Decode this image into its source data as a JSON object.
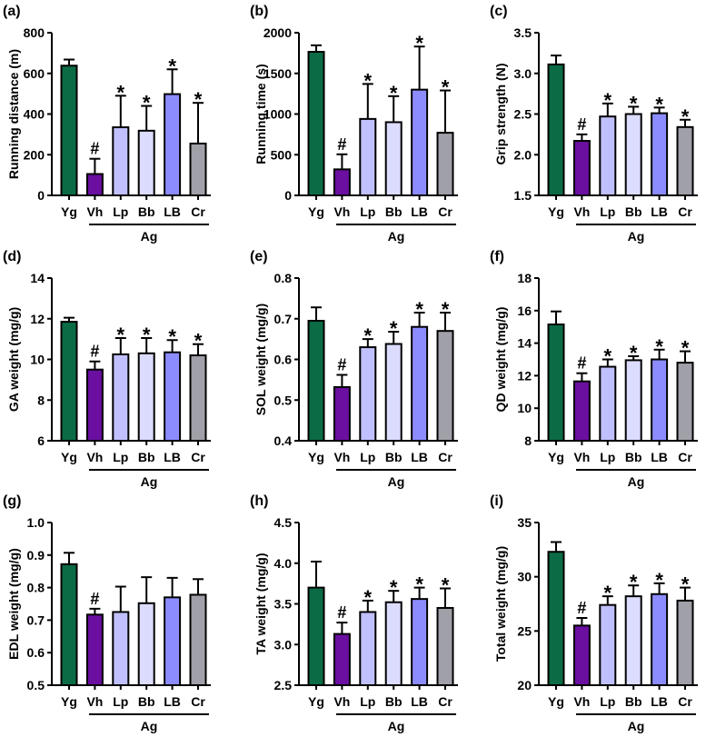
{
  "chart_data": {
    "type": "bar",
    "categories": [
      "Yg",
      "Vh",
      "Lp",
      "Bb",
      "LB",
      "Cr"
    ],
    "group_label": "Ag",
    "colors": [
      "#0b6b45",
      "#6a0fa0",
      "#c0c0ff",
      "#dcdcff",
      "#8c8cff",
      "#a0a0a8"
    ],
    "panels": [
      {
        "label": "(a)",
        "ylabel": "Running distance (m)",
        "ylim": [
          0,
          800
        ],
        "ticks": [
          "0",
          "200",
          "400",
          "600",
          "800"
        ],
        "values": [
          638,
          105,
          335,
          318,
          498,
          255
        ],
        "errors": [
          30,
          75,
          155,
          122,
          122,
          200
        ],
        "markers": [
          "",
          "#",
          "*",
          "*",
          "*",
          "*"
        ]
      },
      {
        "label": "(b)",
        "ylabel": "Running time (s)",
        "ylim": [
          0,
          2000
        ],
        "ticks": [
          "0",
          "500",
          "1000",
          "1500",
          "2000"
        ],
        "values": [
          1765,
          320,
          940,
          900,
          1300,
          770
        ],
        "errors": [
          80,
          185,
          430,
          320,
          530,
          520
        ],
        "markers": [
          "",
          "#",
          "*",
          "*",
          "*",
          "*"
        ]
      },
      {
        "label": "(c)",
        "ylabel": "Grip strength (N)",
        "ylim": [
          1.5,
          3.5
        ],
        "ticks": [
          "1.5",
          "2.0",
          "2.5",
          "3.0",
          "3.5"
        ],
        "values": [
          3.11,
          2.17,
          2.47,
          2.5,
          2.51,
          2.34
        ],
        "errors": [
          0.11,
          0.08,
          0.16,
          0.09,
          0.07,
          0.09
        ],
        "markers": [
          "",
          "#",
          "*",
          "*",
          "*",
          "*"
        ]
      },
      {
        "label": "(d)",
        "ylabel": "GA weight (mg/g)",
        "ylim": [
          6,
          14
        ],
        "ticks": [
          "6",
          "8",
          "10",
          "12",
          "14"
        ],
        "values": [
          11.85,
          9.5,
          10.25,
          10.3,
          10.35,
          10.2
        ],
        "errors": [
          0.2,
          0.4,
          0.8,
          0.75,
          0.6,
          0.55
        ],
        "markers": [
          "",
          "#",
          "*",
          "*",
          "*",
          "*"
        ]
      },
      {
        "label": "(e)",
        "ylabel": "SOL weight (mg/g)",
        "ylim": [
          0.4,
          0.8
        ],
        "ticks": [
          "0.4",
          "0.5",
          "0.6",
          "0.7",
          "0.8"
        ],
        "values": [
          0.695,
          0.532,
          0.63,
          0.638,
          0.68,
          0.67
        ],
        "errors": [
          0.033,
          0.03,
          0.02,
          0.03,
          0.035,
          0.045
        ],
        "markers": [
          "",
          "#",
          "*",
          "*",
          "*",
          "*"
        ]
      },
      {
        "label": "(f)",
        "ylabel": "QD weight (mg/g)",
        "ylim": [
          8,
          18
        ],
        "ticks": [
          "8",
          "10",
          "12",
          "14",
          "16",
          "18"
        ],
        "values": [
          15.15,
          11.65,
          12.55,
          12.95,
          13.0,
          12.8
        ],
        "errors": [
          0.8,
          0.5,
          0.45,
          0.25,
          0.6,
          0.7
        ],
        "markers": [
          "",
          "#",
          "*",
          "*",
          "*",
          "*"
        ]
      },
      {
        "label": "(g)",
        "ylabel": "EDL weight (mg/g)",
        "ylim": [
          0.5,
          1.0
        ],
        "ticks": [
          "0.5",
          "0.6",
          "0.7",
          "0.8",
          "0.9",
          "1.0"
        ],
        "values": [
          0.872,
          0.717,
          0.725,
          0.752,
          0.77,
          0.778
        ],
        "errors": [
          0.035,
          0.018,
          0.078,
          0.08,
          0.06,
          0.048
        ],
        "markers": [
          "",
          "#",
          "",
          "",
          "",
          ""
        ]
      },
      {
        "label": "(h)",
        "ylabel": "TA weight (mg/g)",
        "ylim": [
          2.5,
          4.5
        ],
        "ticks": [
          "2.5",
          "3.0",
          "3.5",
          "4.0",
          "4.5"
        ],
        "values": [
          3.7,
          3.13,
          3.4,
          3.52,
          3.56,
          3.45
        ],
        "errors": [
          0.32,
          0.14,
          0.14,
          0.14,
          0.14,
          0.24
        ],
        "markers": [
          "",
          "#",
          "*",
          "*",
          "*",
          "*"
        ]
      },
      {
        "label": "(i)",
        "ylabel": "Total weight (mg/g)",
        "ylim": [
          20,
          35
        ],
        "ticks": [
          "20",
          "25",
          "30",
          "35"
        ],
        "values": [
          32.3,
          25.5,
          27.4,
          28.2,
          28.4,
          27.8
        ],
        "errors": [
          0.9,
          0.7,
          0.8,
          1.0,
          1.0,
          1.2
        ],
        "markers": [
          "",
          "#",
          "*",
          "*",
          "*",
          "*"
        ]
      }
    ]
  }
}
